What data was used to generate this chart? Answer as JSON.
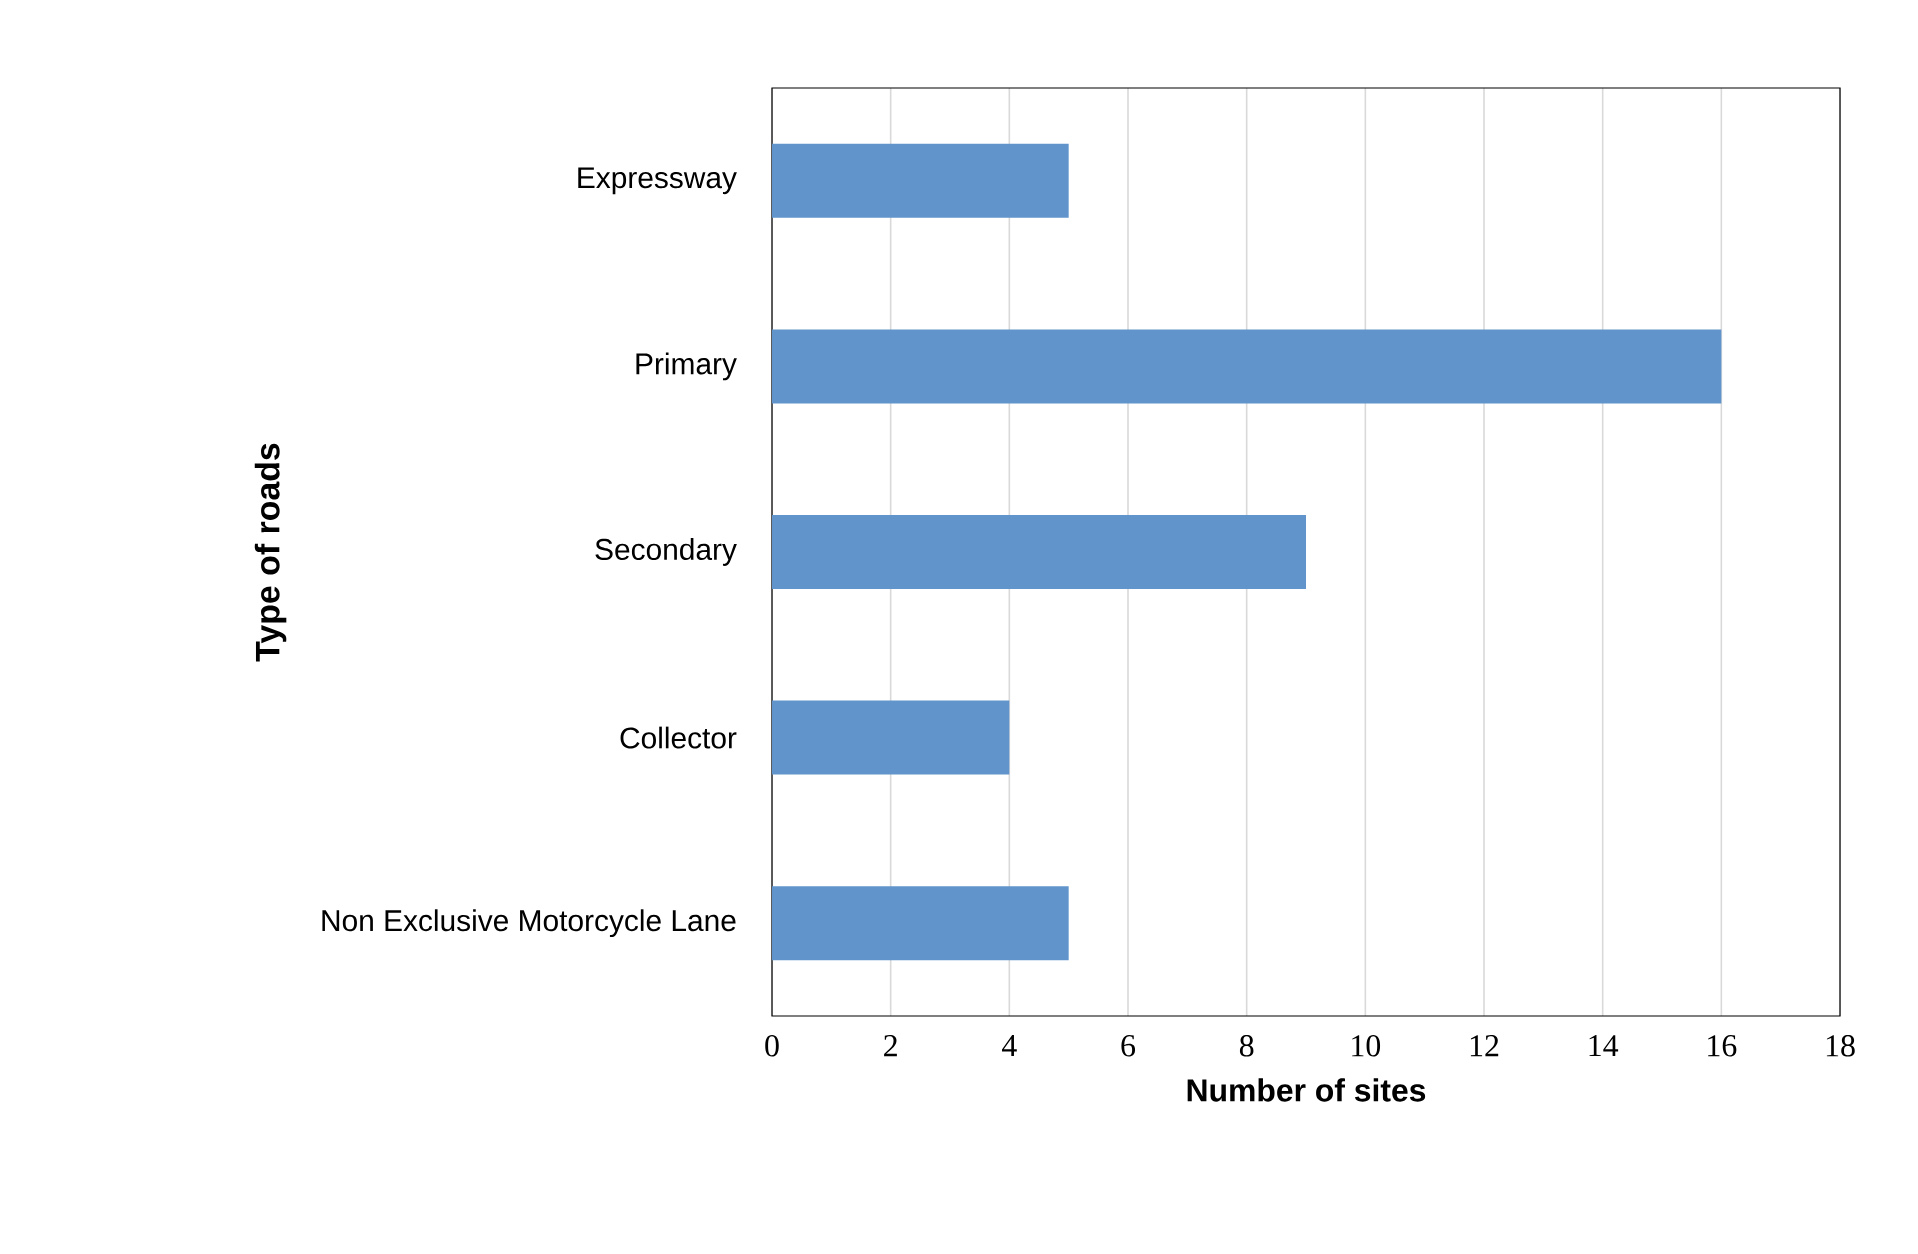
{
  "chart_data": {
    "type": "bar",
    "orientation": "horizontal",
    "categories": [
      "Expressway",
      "Primary",
      "Secondary",
      "Collector",
      "Non Exclusive Motorcycle Lane"
    ],
    "values": [
      5,
      16,
      9,
      4,
      5
    ],
    "color": "#6094cb",
    "xlim": [
      0,
      18
    ],
    "xticks": [
      0,
      2,
      4,
      6,
      8,
      10,
      12,
      14,
      16,
      18
    ],
    "xlabel": "Number of sites",
    "ylabel": "Type of roads",
    "grid": "x"
  }
}
